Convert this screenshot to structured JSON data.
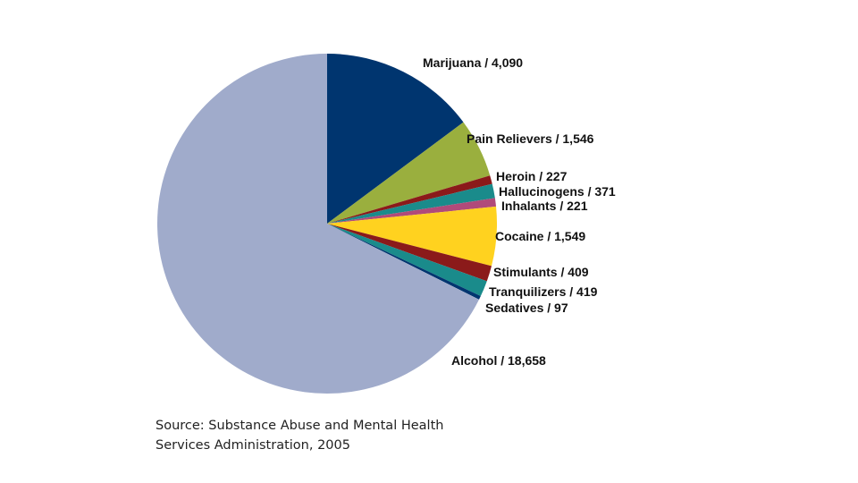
{
  "chart_data": {
    "type": "pie",
    "title": "",
    "start_angle_deg": 0,
    "direction": "clockwise",
    "slices": [
      {
        "label": "Marijuana / 4,090",
        "name": "Marijuana",
        "value": 4090,
        "color": "#00356f"
      },
      {
        "label": "Pain Relievers / 1,546",
        "name": "Pain Relievers",
        "value": 1546,
        "color": "#9aaf3e"
      },
      {
        "label": "Heroin / 227",
        "name": "Heroin",
        "value": 227,
        "color": "#8b1a1a"
      },
      {
        "label": "Hallucinogens / 371",
        "name": "Hallucinogens",
        "value": 371,
        "color": "#1a8b8b"
      },
      {
        "label": "Inhalants / 221",
        "name": "Inhalants",
        "value": 221,
        "color": "#b04a7a"
      },
      {
        "label": "Cocaine / 1,549",
        "name": "Cocaine",
        "value": 1549,
        "color": "#ffd21f"
      },
      {
        "label": "Stimulants / 409",
        "name": "Stimulants",
        "value": 409,
        "color": "#8b1a1a"
      },
      {
        "label": "Tranquilizers / 419",
        "name": "Tranquilizers",
        "value": 419,
        "color": "#1a8b8b"
      },
      {
        "label": "Sedatives / 97",
        "name": "Sedatives",
        "value": 97,
        "color": "#00356f"
      },
      {
        "label": "Alcohol / 18,658",
        "name": "Alcohol",
        "value": 18658,
        "color": "#a0abcb"
      }
    ]
  },
  "source": {
    "line1": "Source: Substance Abuse and Mental Health",
    "line2": "Services Administration, 2005"
  }
}
